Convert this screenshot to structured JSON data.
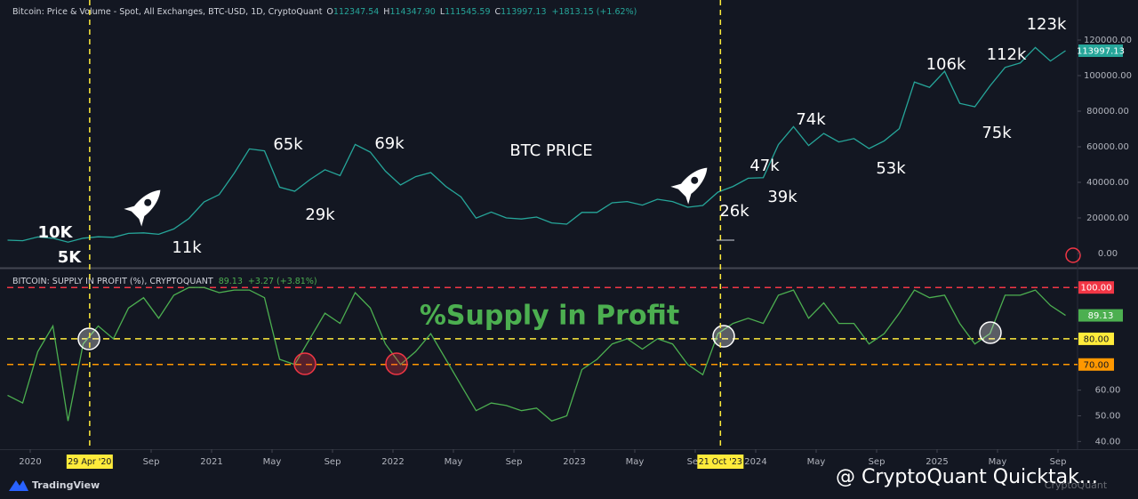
{
  "chart_data": [
    {
      "type": "line",
      "title": "Bitcoin: Price & Volume - Spot, All Exchanges, BTC-USD, 1D, CryptoQuant",
      "ohlc": [
        {
          "key": "O",
          "text": "112347.54"
        },
        {
          "key": "H",
          "text": "114347.90"
        },
        {
          "key": "L",
          "text": "111545.59"
        },
        {
          "key": "C",
          "text": "113997.13"
        }
      ],
      "change": "+1813.15 (+1.62%)",
      "x": [
        "2019-11",
        "2019-12",
        "2020-01",
        "2020-02",
        "2020-03",
        "2020-04",
        "2020-05",
        "2020-06",
        "2020-07",
        "2020-08",
        "2020-09",
        "2020-10",
        "2020-11",
        "2020-12",
        "2021-01",
        "2021-02",
        "2021-03",
        "2021-04",
        "2021-05",
        "2021-06",
        "2021-07",
        "2021-08",
        "2021-09",
        "2021-10",
        "2021-11",
        "2021-12",
        "2022-01",
        "2022-02",
        "2022-03",
        "2022-04",
        "2022-05",
        "2022-06",
        "2022-07",
        "2022-08",
        "2022-09",
        "2022-10",
        "2022-11",
        "2022-12",
        "2023-01",
        "2023-02",
        "2023-03",
        "2023-04",
        "2023-05",
        "2023-06",
        "2023-07",
        "2023-08",
        "2023-09",
        "2023-10",
        "2023-11",
        "2023-12",
        "2024-01",
        "2024-02",
        "2024-03",
        "2024-04",
        "2024-05",
        "2024-06",
        "2024-07",
        "2024-08",
        "2024-09",
        "2024-10",
        "2024-11",
        "2024-12",
        "2025-01",
        "2025-02",
        "2025-03",
        "2025-04",
        "2025-05",
        "2025-06",
        "2025-07",
        "2025-08",
        "2025-09"
      ],
      "series": [
        {
          "name": "BTC-USD",
          "color": "#26a69a",
          "values": [
            7500,
            7200,
            9300,
            8600,
            6400,
            8600,
            9400,
            9100,
            11300,
            11600,
            10800,
            13800,
            19700,
            29000,
            33100,
            45200,
            58800,
            57700,
            37300,
            35000,
            41500,
            47100,
            43800,
            61300,
            57000,
            46300,
            38500,
            43200,
            45500,
            37700,
            31800,
            19900,
            23300,
            20000,
            19400,
            20500,
            17200,
            16500,
            23100,
            23100,
            28500,
            29200,
            27200,
            30500,
            29200,
            26000,
            27000,
            34500,
            37700,
            42300,
            42600,
            61200,
            71300,
            60700,
            67500,
            62700,
            64600,
            59000,
            63300,
            70200,
            96400,
            93400,
            102400,
            84400,
            82500,
            94200,
            104600,
            107100,
            115800,
            108200,
            113997.13
          ]
        }
      ],
      "ylim": [
        -7500,
        142500
      ],
      "yticks": [
        {
          "value": 0,
          "label": "0.00"
        },
        {
          "value": 20000,
          "label": "20000.00"
        },
        {
          "value": 40000,
          "label": "40000.00"
        },
        {
          "value": 60000,
          "label": "60000.00"
        },
        {
          "value": 80000,
          "label": "80000.00"
        },
        {
          "value": 100000,
          "label": "100000.00"
        },
        {
          "value": 120000,
          "label": "120000.00"
        }
      ],
      "grid": false,
      "markers": [
        {
          "x": "2020-04-29",
          "label": "29 Apr '20"
        },
        {
          "x": "2023-10-21",
          "label": "21 Oct '23"
        }
      ],
      "annotations": [
        "10K",
        "5K",
        "11k",
        "65k",
        "29k",
        "69k",
        "BTC PRICE",
        "26k",
        "47k",
        "39k",
        "74k",
        "53k",
        "106k",
        "75k",
        "112k",
        "123k"
      ]
    },
    {
      "type": "line",
      "title": "BITCOIN: SUPPLY IN PROFIT (%), CRYPTOQUANT",
      "change": "+3.27 (+3.81%)",
      "x": [
        "2019-11",
        "2019-12",
        "2020-01",
        "2020-02",
        "2020-03",
        "2020-04",
        "2020-05",
        "2020-06",
        "2020-07",
        "2020-08",
        "2020-09",
        "2020-10",
        "2020-11",
        "2020-12",
        "2021-01",
        "2021-02",
        "2021-03",
        "2021-04",
        "2021-05",
        "2021-06",
        "2021-07",
        "2021-08",
        "2021-09",
        "2021-10",
        "2021-11",
        "2021-12",
        "2022-01",
        "2022-02",
        "2022-03",
        "2022-04",
        "2022-05",
        "2022-06",
        "2022-07",
        "2022-08",
        "2022-09",
        "2022-10",
        "2022-11",
        "2022-12",
        "2023-01",
        "2023-02",
        "2023-03",
        "2023-04",
        "2023-05",
        "2023-06",
        "2023-07",
        "2023-08",
        "2023-09",
        "2023-10",
        "2023-11",
        "2023-12",
        "2024-01",
        "2024-02",
        "2024-03",
        "2024-04",
        "2024-05",
        "2024-06",
        "2024-07",
        "2024-08",
        "2024-09",
        "2024-10",
        "2024-11",
        "2024-12",
        "2025-01",
        "2025-02",
        "2025-03",
        "2025-04",
        "2025-05",
        "2025-06",
        "2025-07",
        "2025-08",
        "2025-09"
      ],
      "series": [
        {
          "name": "Supply in Profit",
          "color": "#4caf50",
          "values": [
            58,
            55,
            75,
            85,
            48,
            78,
            85,
            80,
            92,
            96,
            88,
            97,
            100,
            100,
            98,
            99,
            99,
            96,
            72,
            70,
            80,
            90,
            86,
            98,
            92,
            78,
            70,
            75,
            82,
            72,
            62,
            52,
            55,
            54,
            52,
            53,
            48,
            50,
            68,
            72,
            78,
            80,
            76,
            80,
            78,
            70,
            66,
            82,
            86,
            88,
            86,
            97,
            99,
            88,
            94,
            86,
            86,
            78,
            82,
            90,
            99,
            96,
            97,
            86,
            78,
            82,
            97,
            97,
            99,
            93,
            89.13
          ]
        }
      ],
      "ylim": [
        37,
        107
      ],
      "yticks": [
        {
          "value": 60,
          "label": "60.00"
        },
        {
          "value": 50,
          "label": "50.00"
        },
        {
          "value": 40,
          "label": "40.00"
        }
      ],
      "levels": [
        {
          "value": 100,
          "label": "100.00",
          "color": "#f23645"
        },
        {
          "value": 80,
          "label": "80.00",
          "color": "#ffeb3b"
        },
        {
          "value": 70,
          "label": "70.00",
          "color": "#ff9800"
        }
      ],
      "xticks": [
        {
          "value": "2020-01",
          "label": "2020"
        },
        {
          "value": "2020-09",
          "label": "Sep"
        },
        {
          "value": "2021-01",
          "label": "2021"
        },
        {
          "value": "2021-05",
          "label": "May"
        },
        {
          "value": "2021-09",
          "label": "Sep"
        },
        {
          "value": "2022-01",
          "label": "2022"
        },
        {
          "value": "2022-05",
          "label": "May"
        },
        {
          "value": "2022-09",
          "label": "Sep"
        },
        {
          "value": "2023-01",
          "label": "2023"
        },
        {
          "value": "2023-05",
          "label": "May"
        },
        {
          "value": "2023-09",
          "label": "Sep"
        },
        {
          "value": "2024-01",
          "label": "2024"
        },
        {
          "value": "2024-05",
          "label": "May"
        },
        {
          "value": "2024-09",
          "label": "Sep"
        },
        {
          "value": "2025-01",
          "label": "2025"
        },
        {
          "value": "2025-05",
          "label": "May"
        },
        {
          "value": "2025-09",
          "label": "Sep"
        }
      ],
      "annotations": [
        "%Supply in Profit"
      ]
    }
  ],
  "footer": {
    "brand": "TradingView",
    "watermark": "@ CryptoQuant Quicktak...",
    "logo": "CryptoQuant"
  }
}
